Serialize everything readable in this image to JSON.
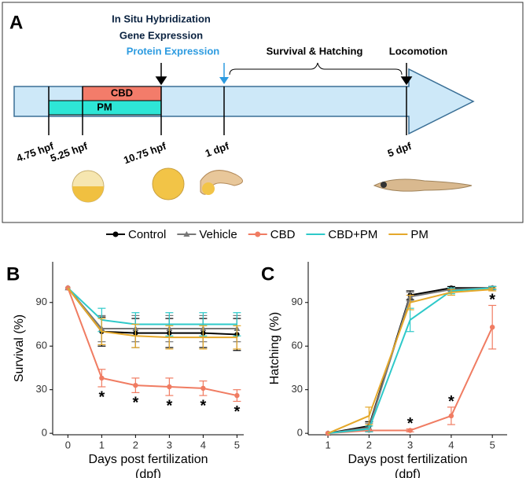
{
  "panel_a": {
    "label": "A",
    "ish": "In Situ Hybridization",
    "gene": "Gene Expression",
    "protein": "Protein Expression",
    "survival": "Survival & Hatching",
    "locomotion": "Locomotion",
    "cbd": "CBD",
    "pm": "PM",
    "times": [
      "4.75 hpf",
      "5.25 hpf",
      "10.75 hpf",
      "1 dpf",
      "5 dpf"
    ]
  },
  "chart_data": [
    {
      "type": "line",
      "panel": "B",
      "ylabel": "Survival (%)",
      "xlabel": [
        "Days post fertilization",
        "(dpf)"
      ],
      "x": [
        0,
        1,
        2,
        3,
        4,
        5
      ],
      "xticks": [
        0,
        1,
        2,
        3,
        4,
        5
      ],
      "xlim": [
        -0.45,
        5.2
      ],
      "ylim": [
        -1,
        118
      ],
      "yticks": [
        0,
        30,
        60,
        90
      ],
      "series": [
        {
          "name": "Control",
          "color": "#000000",
          "marker": "circle",
          "values": [
            100,
            70,
            69,
            69,
            69,
            68
          ],
          "errors": [
            0,
            10,
            10,
            10,
            10,
            11
          ]
        },
        {
          "name": "Vehicle",
          "color": "#777777",
          "marker": "triangle",
          "values": [
            100,
            72,
            72,
            72,
            72,
            72
          ],
          "errors": [
            0,
            9,
            9,
            9,
            9,
            9
          ]
        },
        {
          "name": "CBD",
          "color": "#f07c62",
          "marker": "circle",
          "values": [
            100,
            38,
            33,
            32,
            31,
            26
          ],
          "errors": [
            0,
            6,
            5,
            6,
            5,
            4
          ]
        },
        {
          "name": "CBD+PM",
          "color": "#2ec9c9",
          "marker": "none",
          "values": [
            100,
            78,
            75,
            75,
            75,
            75
          ],
          "errors": [
            0,
            8,
            8,
            8,
            8,
            8
          ]
        },
        {
          "name": "PM",
          "color": "#e5a82a",
          "marker": "none",
          "values": [
            100,
            70,
            67,
            66,
            66,
            66
          ],
          "errors": [
            0,
            9,
            8,
            8,
            8,
            8
          ]
        }
      ],
      "significance": {
        "label": "*",
        "series": 2,
        "side": "below",
        "x": [
          1,
          2,
          3,
          4,
          5
        ]
      }
    },
    {
      "type": "line",
      "panel": "C",
      "ylabel": "Hatching (%)",
      "xlabel": [
        "Days post fertilization",
        "(dpf)"
      ],
      "x": [
        1,
        2,
        3,
        4,
        5
      ],
      "xticks": [
        1,
        2,
        3,
        4,
        5
      ],
      "xlim": [
        0.52,
        5.36
      ],
      "ylim": [
        -1,
        118
      ],
      "yticks": [
        0,
        30,
        60,
        90
      ],
      "series": [
        {
          "name": "Control",
          "color": "#000000",
          "marker": "circle",
          "values": [
            0,
            5,
            95,
            100,
            100
          ],
          "errors": [
            0,
            3,
            3,
            1,
            1
          ]
        },
        {
          "name": "Vehicle",
          "color": "#777777",
          "marker": "triangle",
          "values": [
            0,
            4,
            94,
            99,
            100
          ],
          "errors": [
            0,
            3,
            3,
            1,
            1
          ]
        },
        {
          "name": "CBD",
          "color": "#f07c62",
          "marker": "circle",
          "values": [
            0,
            2,
            2,
            12,
            73
          ],
          "errors": [
            0,
            0,
            1,
            6,
            15
          ]
        },
        {
          "name": "CBD+PM",
          "color": "#2ec9c9",
          "marker": "none",
          "values": [
            0,
            3,
            78,
            98,
            100
          ],
          "errors": [
            0,
            2,
            8,
            2,
            1
          ]
        },
        {
          "name": "PM",
          "color": "#e5a82a",
          "marker": "none",
          "values": [
            0,
            12,
            90,
            97,
            99
          ],
          "errors": [
            0,
            6,
            5,
            2,
            1
          ]
        }
      ],
      "significance": {
        "label": "*",
        "series": 2,
        "side": "above",
        "x": [
          3,
          4,
          5
        ]
      }
    }
  ]
}
